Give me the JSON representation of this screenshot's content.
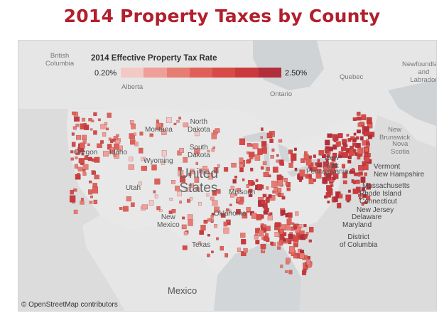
{
  "title": "2014 Property Taxes by County",
  "legend": {
    "title": "2014 Effective Property Tax Rate",
    "min_label": "0.20%",
    "max_label": "2.50%",
    "colors": [
      "#f3c9c6",
      "#ef9f97",
      "#e77c73",
      "#e06058",
      "#d74a45",
      "#c93a3d",
      "#b22e3b"
    ]
  },
  "places": {
    "british_columbia": "British\nColumbia",
    "alberta": "Alberta",
    "quebec": "Quebec",
    "newfoundland": "Newfoundland\nand\nLabrador",
    "ontario": "Ontario",
    "new_brunswick": "New\nBrunswick",
    "nova_scotia": "Nova\nScotia",
    "montana": "Montana",
    "north_dakota": "North\nDakota",
    "south_dakota": "South\nDakota",
    "oregon": "Oregon",
    "idaho": "Idaho",
    "wyoming": "Wyoming",
    "utah": "Utah",
    "new_mexico": "New\nMexico",
    "texas": "Texas",
    "oklahoma": "Oklahoma",
    "missouri": "Missouri",
    "pennsylvania": "Pennsylvania",
    "new_york": "New\nYork",
    "united_states": "United\nStates",
    "mexico": "Mexico",
    "vermont": "Vermont",
    "new_hampshire": "New Hampshire",
    "massachusetts": "Massachusetts",
    "rhode_island": "Rhode Island",
    "connecticut": "Connecticut",
    "new_jersey": "New Jersey",
    "delaware": "Delaware",
    "maryland": "Maryland",
    "dc": "District\nof Columbia"
  },
  "attribution": "© OpenStreetMap contributors"
}
